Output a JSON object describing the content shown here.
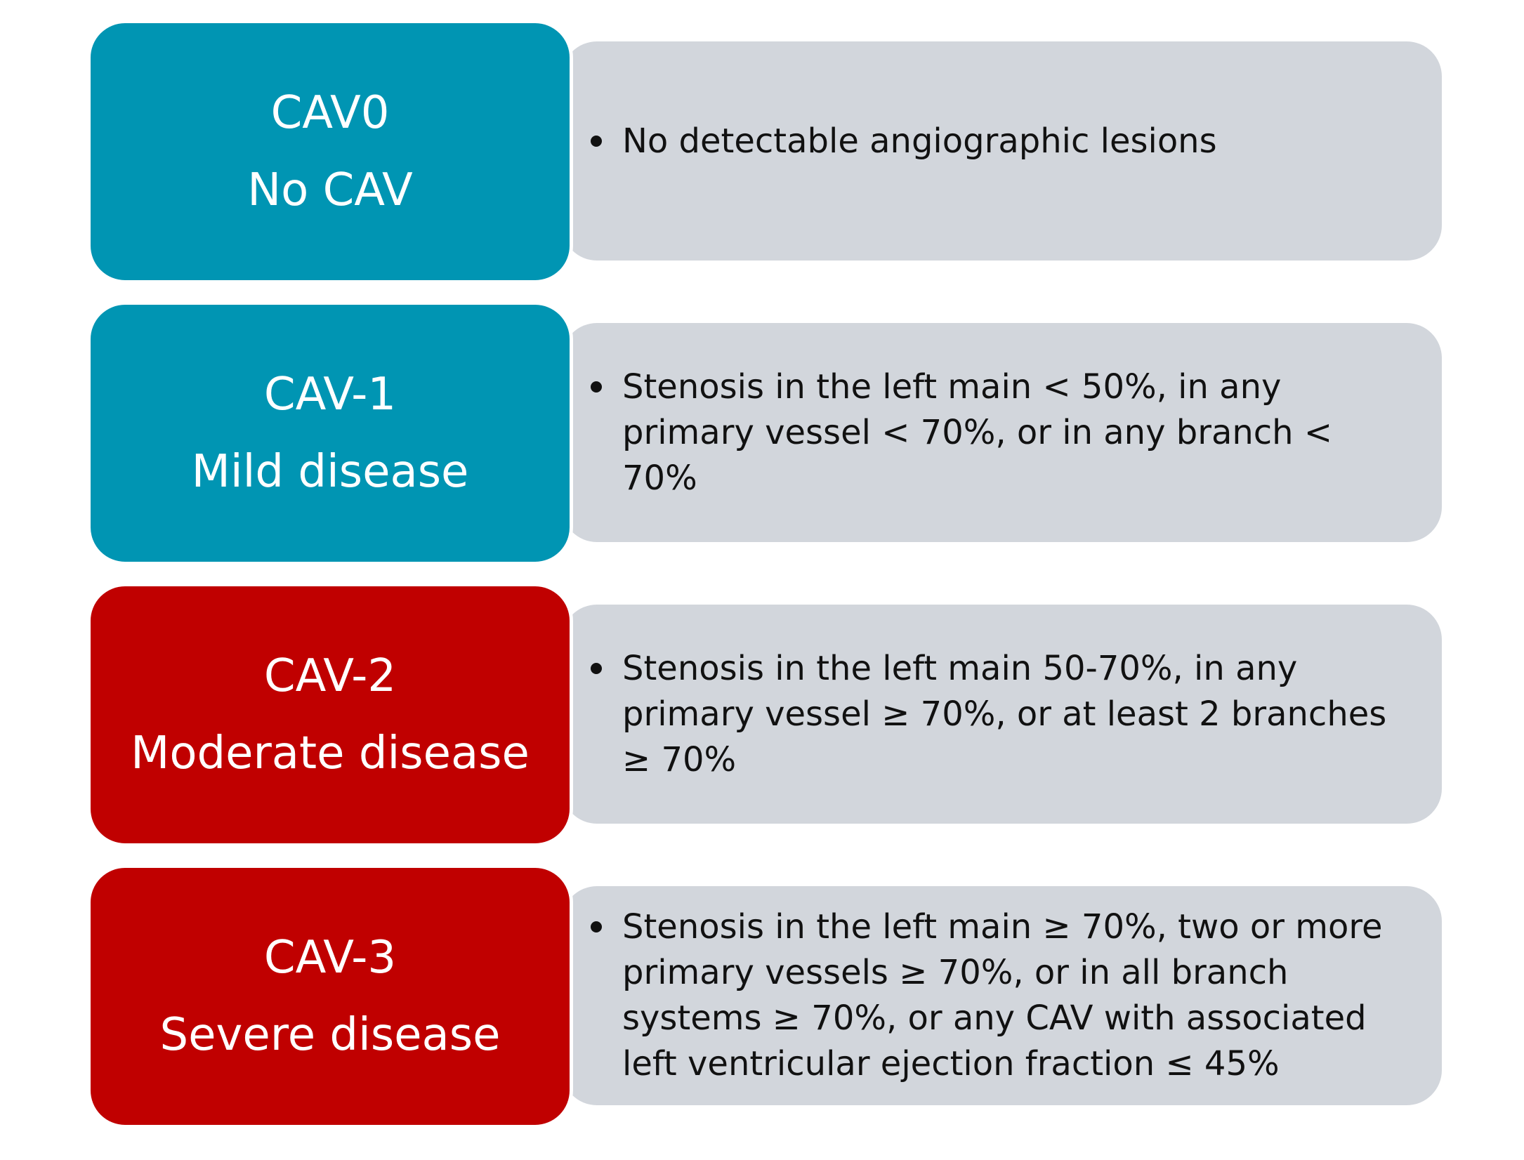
{
  "colors": {
    "teal": "#0095b3",
    "red": "#c00000",
    "gray": "#d2d6dc",
    "text": "#111111"
  },
  "grades": [
    {
      "code": "CAV0",
      "label": "No CAV",
      "color": "#0095b3",
      "description": "No detectable angiographic lesions"
    },
    {
      "code": "CAV-1",
      "label": "Mild disease",
      "color": "#0095b3",
      "description": "Stenosis in the left main < 50%, in any primary vessel < 70%, or in any branch < 70%"
    },
    {
      "code": "CAV-2",
      "label": "Moderate disease",
      "color": "#c00000",
      "description": " Stenosis in the left main 50-70%, in any primary vessel ≥ 70%, or at least 2 branches ≥ 70%"
    },
    {
      "code": "CAV-3",
      "label": "Severe disease",
      "color": "#c00000",
      "description": " Stenosis in the left main ≥ 70%, two or more primary vessels ≥ 70%, or in all branch systems ≥ 70%, or any CAV with associated left ventricular ejection fraction ≤ 45%"
    }
  ]
}
